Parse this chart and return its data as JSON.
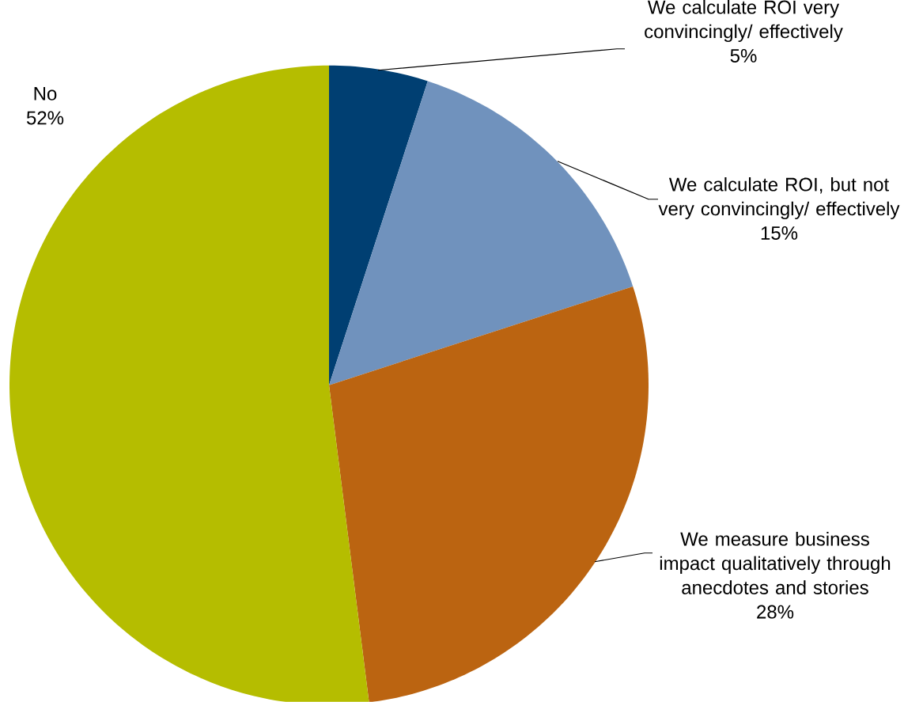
{
  "chart_data": {
    "type": "pie",
    "categories": [
      "We calculate ROI very convincingly/ effectively",
      "We calculate ROI, but not very convincingly/ effectively",
      "We measure business impact qualitatively through anecdotes and stories",
      "No"
    ],
    "values": [
      5,
      15,
      28,
      52
    ],
    "value_labels": [
      "5%",
      "15%",
      "28%",
      "52%"
    ],
    "colors": [
      "#003f72",
      "#7092bd",
      "#bb6411",
      "#b5bd00"
    ]
  }
}
